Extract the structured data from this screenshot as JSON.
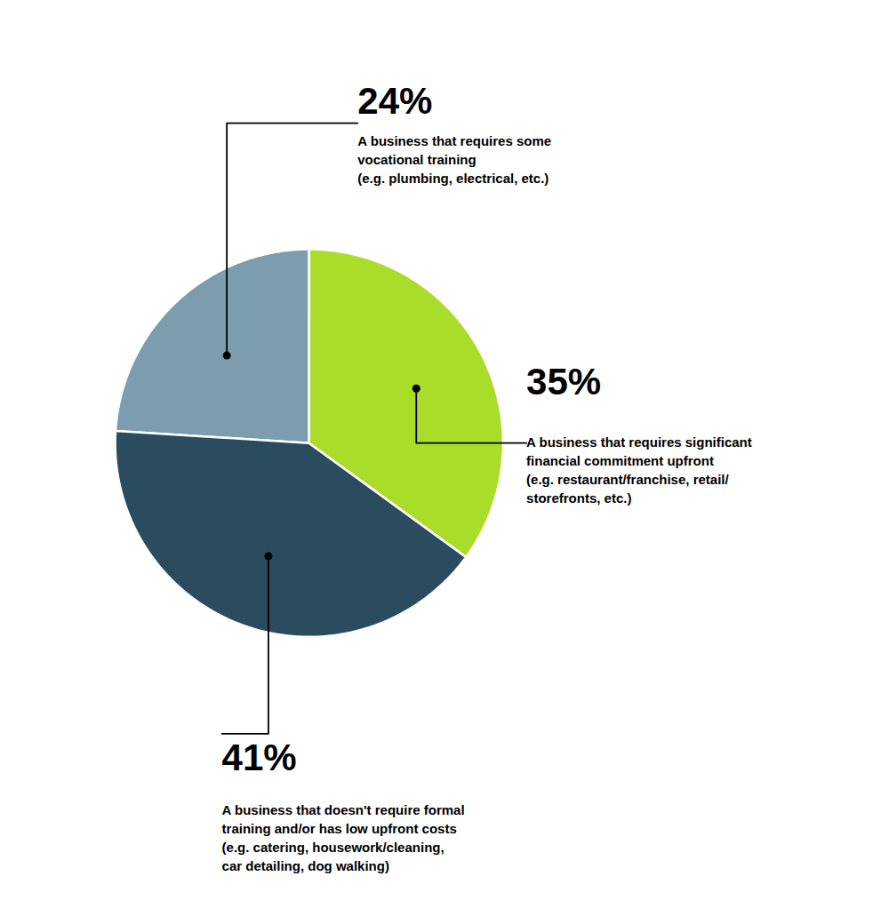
{
  "chart_data": {
    "type": "pie",
    "categories": [
      "A business that requires some\nvocational training\n(e.g. plumbing, electrical, etc.)",
      "A business that doesn't require formal\ntraining and/or has low upfront costs\n(e.g. catering, housework/cleaning,\ncar detailing, dog walking)",
      "A business that requires significant\nfinancial commitment upfront\n(e.g. restaurant/franchise, retail/\nstorefronts, etc.)"
    ],
    "values": [
      24,
      41,
      35
    ],
    "value_labels": [
      "24%",
      "41%",
      "35%"
    ],
    "colors": [
      "#7B9DAE",
      "#2B4C5F",
      "#AADD2A"
    ],
    "data_labels": true,
    "tick_labels": false
  }
}
